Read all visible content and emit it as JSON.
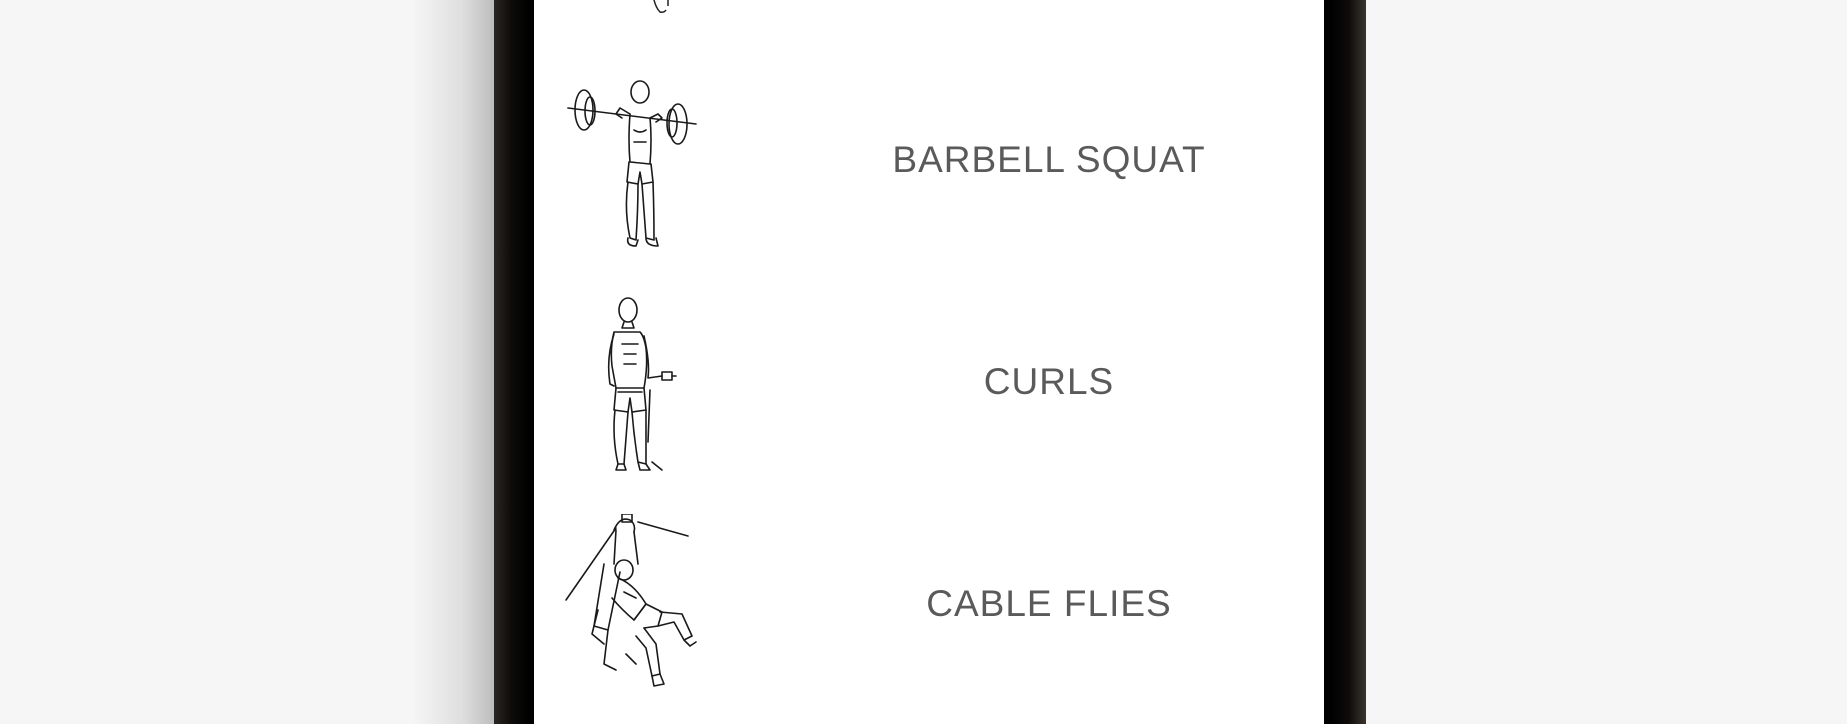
{
  "exercises": [
    {
      "name": "BARBELL SQUAT",
      "icon": "barbell-squat-icon"
    },
    {
      "name": "CURLS",
      "icon": "cable-curl-icon"
    },
    {
      "name": "CABLE FLIES",
      "icon": "cable-flies-icon"
    }
  ],
  "colors": {
    "background": "#f6f6f6",
    "screen": "#ffffff",
    "label": "#5a5a5a",
    "frame": "#000000"
  }
}
